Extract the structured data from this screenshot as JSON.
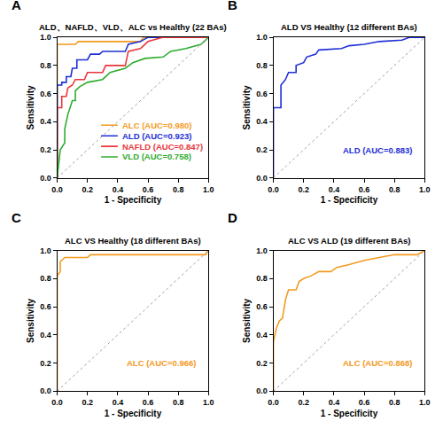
{
  "chart_data": [
    {
      "type": "line",
      "panel": "A",
      "title": "ALD、NAFLD、VLD、ALC vs Healthy (22 BAs)",
      "x_label": "1 - Specificity",
      "y_label": "Sensitivity",
      "xlim": [
        0,
        1
      ],
      "ylim": [
        0,
        1
      ],
      "xticks": [
        {
          "value": 0,
          "label": "0.0"
        },
        0.2,
        0.4,
        0.6,
        0.8,
        {
          "value": 1,
          "label": "1.0"
        }
      ],
      "yticks": [
        {
          "value": 0,
          "label": "0.0"
        },
        0.2,
        0.4,
        0.6,
        0.8,
        {
          "value": 1,
          "label": "1.0"
        }
      ],
      "grid": false,
      "legend": "lower right",
      "series": [
        {
          "name": "ALC (AUC=0.980)",
          "color": "#f39a1f",
          "line_style": "solid",
          "x": [
            0,
            0,
            0.04,
            0.12,
            0.14,
            0.55,
            0.57,
            1
          ],
          "values": [
            0,
            0.95,
            0.95,
            0.95,
            0.97,
            0.97,
            1,
            1
          ]
        },
        {
          "name": "ALD (AUC=0.923)",
          "color": "#1f2fd6",
          "line_style": "solid",
          "x": [
            0,
            0,
            0.03,
            0.03,
            0.06,
            0.06,
            0.09,
            0.1,
            0.13,
            0.13,
            0.2,
            0.22,
            0.28,
            0.3,
            0.45,
            0.47,
            0.55,
            0.6,
            1
          ],
          "values": [
            0,
            0.66,
            0.66,
            0.68,
            0.68,
            0.72,
            0.72,
            0.78,
            0.78,
            0.84,
            0.84,
            0.88,
            0.88,
            0.9,
            0.9,
            0.95,
            0.97,
            1,
            1
          ]
        },
        {
          "name": "NAFLD (AUC=0.847)",
          "color": "#e8363a",
          "line_style": "solid",
          "x": [
            0,
            0,
            0.03,
            0.03,
            0.06,
            0.07,
            0.1,
            0.12,
            0.18,
            0.2,
            0.3,
            0.32,
            0.45,
            0.47,
            0.55,
            0.6,
            0.7,
            1
          ],
          "values": [
            0,
            0.5,
            0.5,
            0.58,
            0.58,
            0.64,
            0.66,
            0.7,
            0.7,
            0.75,
            0.75,
            0.8,
            0.8,
            0.9,
            0.92,
            0.97,
            1,
            1
          ]
        },
        {
          "name": "VLD (AUC=0.758)",
          "color": "#2eab2e",
          "line_style": "solid",
          "x": [
            0,
            0.02,
            0.05,
            0.05,
            0.07,
            0.1,
            0.12,
            0.12,
            0.15,
            0.2,
            0.3,
            0.35,
            0.45,
            0.5,
            0.58,
            0.7,
            0.75,
            0.85,
            0.95,
            1
          ],
          "values": [
            0,
            0.2,
            0.25,
            0.35,
            0.45,
            0.55,
            0.55,
            0.62,
            0.65,
            0.68,
            0.7,
            0.75,
            0.78,
            0.82,
            0.85,
            0.86,
            0.9,
            0.92,
            0.95,
            1
          ]
        },
        {
          "color": "#a0a0a0",
          "line_style": "dotted",
          "x": [
            0,
            1
          ],
          "values": [
            0,
            1
          ]
        }
      ]
    },
    {
      "type": "line",
      "panel": "B",
      "title": "ALD VS Healthy (12 different BAs)",
      "x_label": "1 - Specificity",
      "y_label": "Sensitivity",
      "xlim": [
        0,
        1
      ],
      "ylim": [
        0,
        1
      ],
      "xticks": [
        {
          "value": 0,
          "label": "0.0"
        },
        0.2,
        0.4,
        0.6,
        0.8,
        {
          "value": 1,
          "label": "1.0"
        }
      ],
      "yticks": [
        {
          "value": 0,
          "label": "0.0"
        },
        0.2,
        0.4,
        0.6,
        0.8,
        {
          "value": 1,
          "label": "1.0"
        }
      ],
      "grid": false,
      "legend": "lower right",
      "series": [
        {
          "name": "ALD (AUC=0.883)",
          "color": "#1f2fd6",
          "line_style": "solid",
          "x": [
            0,
            0,
            0.05,
            0.05,
            0.08,
            0.1,
            0.15,
            0.15,
            0.2,
            0.22,
            0.28,
            0.3,
            0.45,
            0.5,
            0.6,
            0.7,
            0.85,
            0.9,
            1
          ],
          "values": [
            0,
            0.5,
            0.5,
            0.66,
            0.7,
            0.75,
            0.75,
            0.8,
            0.82,
            0.86,
            0.88,
            0.91,
            0.92,
            0.94,
            0.95,
            0.97,
            0.98,
            1,
            1
          ]
        },
        {
          "color": "#a0a0a0",
          "line_style": "dotted",
          "x": [
            0,
            1
          ],
          "values": [
            0,
            1
          ]
        }
      ]
    },
    {
      "type": "line",
      "panel": "C",
      "title": "ALC VS Healthy (18 different BAs)",
      "x_label": "1 - Specificity",
      "y_label": "Sensitivity",
      "xlim": [
        0,
        1
      ],
      "ylim": [
        0,
        1
      ],
      "xticks": [
        {
          "value": 0,
          "label": "0.0"
        },
        0.2,
        0.4,
        0.6,
        0.8,
        {
          "value": 1,
          "label": "1.0"
        }
      ],
      "yticks": [
        {
          "value": 0,
          "label": "0.0"
        },
        0.2,
        0.4,
        0.6,
        0.8,
        {
          "value": 1,
          "label": "1.0"
        }
      ],
      "grid": false,
      "legend": "lower right",
      "series": [
        {
          "name": "ALC (AUC=0.966)",
          "color": "#f39a1f",
          "line_style": "solid",
          "x": [
            0,
            0,
            0.02,
            0.02,
            0.05,
            0.2,
            0.22,
            0.98,
            1
          ],
          "values": [
            0,
            0.82,
            0.85,
            0.92,
            0.95,
            0.95,
            0.97,
            0.97,
            1
          ]
        },
        {
          "color": "#a0a0a0",
          "line_style": "dotted",
          "x": [
            0,
            1
          ],
          "values": [
            0,
            1
          ]
        }
      ]
    },
    {
      "type": "line",
      "panel": "D",
      "title": "ALC VS ALD (19 different BAs)",
      "x_label": "1 - Specificity",
      "y_label": "Sensitivity",
      "xlim": [
        0,
        1
      ],
      "ylim": [
        0,
        1
      ],
      "xticks": [
        {
          "value": 0,
          "label": "0.0"
        },
        0.2,
        0.4,
        0.6,
        0.8,
        {
          "value": 1,
          "label": "1.0"
        }
      ],
      "yticks": [
        {
          "value": 0,
          "label": "0.0"
        },
        0.2,
        0.4,
        0.6,
        0.8,
        {
          "value": 1,
          "label": "1.0"
        }
      ],
      "grid": false,
      "legend": "lower right",
      "series": [
        {
          "name": "ALC (AUC=0.868)",
          "color": "#f39a1f",
          "line_style": "solid",
          "x": [
            0,
            0,
            0.02,
            0.04,
            0.06,
            0.07,
            0.08,
            0.1,
            0.15,
            0.17,
            0.2,
            0.25,
            0.3,
            0.38,
            0.42,
            0.5,
            0.6,
            0.7,
            0.8,
            0.95,
            1
          ],
          "values": [
            0,
            0.35,
            0.45,
            0.5,
            0.52,
            0.6,
            0.65,
            0.72,
            0.72,
            0.78,
            0.8,
            0.82,
            0.85,
            0.85,
            0.88,
            0.9,
            0.93,
            0.95,
            0.97,
            0.97,
            1
          ]
        },
        {
          "color": "#a0a0a0",
          "line_style": "dotted",
          "x": [
            0,
            1
          ],
          "values": [
            0,
            1
          ]
        }
      ]
    }
  ]
}
